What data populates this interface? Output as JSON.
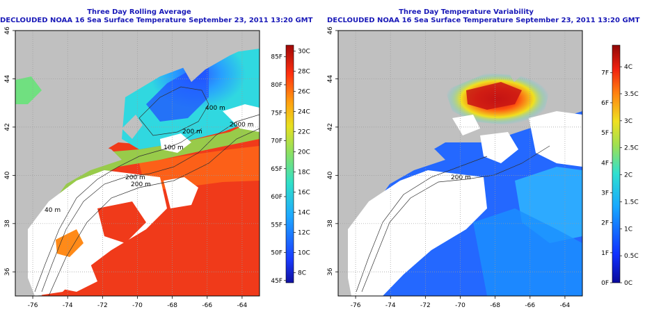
{
  "panels": {
    "left": {
      "title_line1": "Three Day Rolling Average",
      "title_line2": "DECLOUDED NOAA 16 Sea Surface Temperature September 23, 2011 13:20 GMT",
      "x_ticks": [
        "-76",
        "-74",
        "-72",
        "-70",
        "-68",
        "-66",
        "-64"
      ],
      "y_ticks": [
        "46",
        "44",
        "42",
        "40",
        "38",
        "36"
      ],
      "contour_labels": [
        "400 m",
        "200 m",
        "2000 m",
        "100 m",
        "200 m",
        "200 m",
        "40 m"
      ],
      "colorbar": {
        "left_labels": [
          "85F",
          "80F",
          "75F",
          "70F",
          "65F",
          "60F",
          "55F",
          "50F",
          "45F"
        ],
        "right_labels": [
          "30C",
          "28C",
          "26C",
          "24C",
          "22C",
          "20C",
          "18C",
          "16C",
          "14C",
          "12C",
          "10C",
          "8C"
        ]
      }
    },
    "right": {
      "title_line1": "Three Day Temperature Variability",
      "title_line2": "DECLOUDED NOAA 16 Sea Surface Temperature September 23, 2011 13:20 GMT",
      "x_ticks": [
        "-76",
        "-74",
        "-72",
        "-70",
        "-68",
        "-66",
        "-64"
      ],
      "y_ticks": [
        "46",
        "44",
        "42",
        "40",
        "38",
        "36"
      ],
      "contour_labels": [
        "200 m"
      ],
      "colorbar": {
        "left_labels": [
          "7F",
          "6F",
          "5F",
          "4F",
          "3F",
          "2F",
          "1F",
          "0F"
        ],
        "right_labels": [
          "4C",
          "3.5C",
          "3C",
          "2.5C",
          "2C",
          "1.5C",
          "1C",
          "0.5C",
          "0C"
        ]
      }
    }
  },
  "colors": {
    "title": "#1a1ab8",
    "land": "#c0c0c0",
    "cloud": "#ffffff",
    "grid": "#9a9a9a"
  }
}
